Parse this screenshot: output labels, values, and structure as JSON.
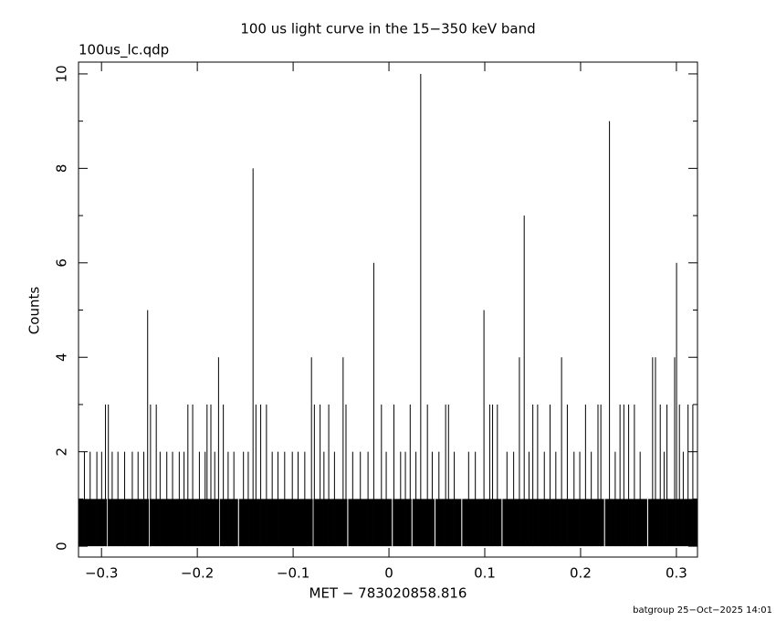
{
  "chart_data": {
    "type": "step",
    "title": "100 us light curve in the 15−350 keV band",
    "subtitle": "100us_lc.qdp",
    "x_label": "MET − 783020858.816",
    "y_label": "Counts",
    "footer": "batgroup 25−Oct−2025 14:01",
    "color": "#000000",
    "xlim": [
      -0.324,
      0.322
    ],
    "ylim": [
      -0.23,
      10.25
    ],
    "xticks": [
      {
        "value": -0.3,
        "label": "−0.3"
      },
      {
        "value": -0.2,
        "label": "−0.2"
      },
      {
        "value": -0.1,
        "label": "−0.1"
      },
      0,
      0.1,
      0.2,
      0.3
    ],
    "yticks": [
      0,
      2,
      4,
      6,
      8,
      10
    ],
    "yminorticks": [
      1,
      3,
      5,
      7,
      9
    ],
    "x": [
      -0.324,
      -0.318,
      -0.3177,
      -0.312,
      -0.3117,
      -0.305,
      -0.3047,
      -0.3,
      -0.2997,
      -0.296,
      -0.2957,
      -0.2945,
      -0.2935,
      -0.293,
      -0.2927,
      -0.289,
      -0.2887,
      -0.283,
      -0.2827,
      -0.276,
      -0.2757,
      -0.268,
      -0.2677,
      -0.262,
      -0.2617,
      -0.256,
      -0.2557,
      -0.252,
      -0.2517,
      -0.2505,
      -0.2495,
      -0.249,
      -0.2487,
      -0.243,
      -0.2427,
      -0.239,
      -0.2387,
      -0.232,
      -0.2317,
      -0.226,
      -0.2257,
      -0.219,
      -0.2187,
      -0.214,
      -0.2137,
      -0.21,
      -0.2097,
      -0.205,
      -0.2047,
      -0.198,
      -0.1977,
      -0.192,
      -0.1917,
      -0.19,
      -0.1897,
      -0.186,
      -0.1857,
      -0.182,
      -0.1817,
      -0.178,
      -0.1777,
      -0.1775,
      -0.1765,
      -0.173,
      -0.1727,
      -0.168,
      -0.1677,
      -0.162,
      -0.1617,
      -0.1575,
      -0.1565,
      -0.152,
      -0.1517,
      -0.147,
      -0.1467,
      -0.142,
      -0.1417,
      -0.139,
      -0.1387,
      -0.134,
      -0.1337,
      -0.128,
      -0.1277,
      -0.122,
      -0.1217,
      -0.116,
      -0.1157,
      -0.109,
      -0.1087,
      -0.101,
      -0.1007,
      -0.095,
      -0.0947,
      -0.088,
      -0.0877,
      -0.081,
      -0.0807,
      -0.0795,
      -0.0785,
      -0.078,
      -0.0777,
      -0.072,
      -0.0717,
      -0.068,
      -0.0677,
      -0.063,
      -0.0627,
      -0.057,
      -0.0567,
      -0.048,
      -0.0477,
      -0.045,
      -0.0447,
      -0.0435,
      -0.0425,
      -0.038,
      -0.0377,
      -0.03,
      -0.0297,
      -0.022,
      -0.0217,
      -0.016,
      -0.0157,
      -0.008,
      -0.0077,
      -0.003,
      -0.0027,
      0.003,
      0.004,
      0.005,
      0.0053,
      0.012,
      0.0123,
      0.017,
      0.0173,
      0.022,
      0.0223,
      0.0235,
      0.0245,
      0.028,
      0.0283,
      0.033,
      0.0333,
      0.04,
      0.0403,
      0.045,
      0.0453,
      0.0475,
      0.0485,
      0.052,
      0.0523,
      0.059,
      0.0593,
      0.062,
      0.0623,
      0.068,
      0.0683,
      0.0755,
      0.0765,
      0.083,
      0.0833,
      0.09,
      0.0903,
      0.099,
      0.0993,
      0.105,
      0.1053,
      0.108,
      0.1083,
      0.113,
      0.1133,
      0.1175,
      0.1185,
      0.123,
      0.1233,
      0.13,
      0.1303,
      0.136,
      0.1363,
      0.141,
      0.1413,
      0.146,
      0.1463,
      0.15,
      0.1503,
      0.155,
      0.1553,
      0.162,
      0.1623,
      0.168,
      0.1683,
      0.174,
      0.1743,
      0.18,
      0.1803,
      0.186,
      0.1863,
      0.193,
      0.1933,
      0.199,
      0.1993,
      0.205,
      0.2053,
      0.211,
      0.2113,
      0.218,
      0.2183,
      0.221,
      0.2213,
      0.2245,
      0.2255,
      0.23,
      0.2303,
      0.236,
      0.2363,
      0.241,
      0.2413,
      0.245,
      0.2453,
      0.25,
      0.2503,
      0.256,
      0.2563,
      0.262,
      0.2623,
      0.2695,
      0.2705,
      0.275,
      0.2753,
      0.278,
      0.2783,
      0.283,
      0.2833,
      0.287,
      0.2873,
      0.29,
      0.2903,
      0.298,
      0.2983,
      0.3,
      0.3003,
      0.303,
      0.3033,
      0.307,
      0.3073,
      0.312,
      0.3123,
      0.317,
      0.3173
    ],
    "values": [
      1,
      2,
      1,
      2,
      1,
      2,
      1,
      2,
      1,
      3,
      1,
      0,
      1,
      3,
      1,
      2,
      1,
      2,
      1,
      2,
      1,
      2,
      1,
      2,
      1,
      2,
      1,
      5,
      1,
      0,
      1,
      3,
      1,
      3,
      1,
      2,
      1,
      2,
      1,
      2,
      1,
      2,
      1,
      2,
      1,
      3,
      1,
      3,
      1,
      2,
      1,
      2,
      1,
      3,
      1,
      3,
      1,
      2,
      1,
      4,
      1,
      0,
      1,
      3,
      1,
      2,
      1,
      2,
      1,
      0,
      1,
      2,
      1,
      2,
      1,
      8,
      1,
      3,
      1,
      3,
      1,
      3,
      1,
      2,
      1,
      2,
      1,
      2,
      1,
      2,
      1,
      2,
      1,
      2,
      1,
      4,
      1,
      0,
      1,
      3,
      1,
      3,
      1,
      2,
      1,
      3,
      1,
      2,
      1,
      4,
      1,
      3,
      1,
      0,
      1,
      2,
      1,
      2,
      1,
      2,
      1,
      6,
      1,
      3,
      1,
      2,
      1,
      0,
      1,
      3,
      1,
      2,
      1,
      2,
      1,
      3,
      1,
      0,
      1,
      2,
      1,
      10,
      1,
      3,
      1,
      2,
      1,
      0,
      1,
      2,
      1,
      3,
      1,
      3,
      1,
      2,
      1,
      0,
      1,
      2,
      1,
      2,
      1,
      5,
      1,
      3,
      1,
      3,
      1,
      3,
      1,
      0,
      1,
      2,
      1,
      2,
      1,
      4,
      1,
      7,
      1,
      2,
      1,
      3,
      1,
      3,
      1,
      2,
      1,
      3,
      1,
      2,
      1,
      4,
      1,
      3,
      1,
      2,
      1,
      2,
      1,
      3,
      1,
      2,
      1,
      3,
      1,
      3,
      1,
      0,
      1,
      9,
      1,
      2,
      1,
      3,
      1,
      3,
      1,
      3,
      1,
      3,
      1,
      2,
      1,
      0,
      1,
      4,
      1,
      4,
      1,
      3,
      1,
      2,
      1,
      3,
      1,
      4,
      1,
      6,
      1,
      3,
      1,
      2,
      1,
      3,
      1,
      3,
      1
    ]
  }
}
